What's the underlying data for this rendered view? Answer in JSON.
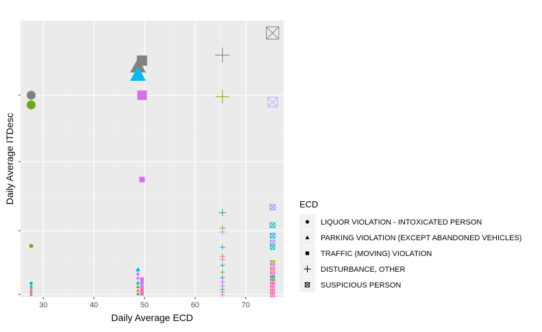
{
  "chart_data": {
    "type": "scatter",
    "title": "",
    "xlabel": "Daily Average ECD",
    "ylabel": "Daily Average ITDesc",
    "xlim": [
      25.5,
      77.5
    ],
    "ylim": [
      0,
      100
    ],
    "x_ticks": [
      30,
      40,
      50,
      60,
      70
    ],
    "y_ticks": [
      1,
      24,
      49,
      73
    ],
    "y_tick_labels_shown": false,
    "grid": true,
    "legend": {
      "title": "ECD",
      "position": "right",
      "entries": [
        {
          "label": "LIQUOR VIOLATION - INTOXICATED PERSON",
          "shape": "circle"
        },
        {
          "label": "PARKING VIOLATION (EXCEPT ABANDONED VEHICLES)",
          "shape": "triangle"
        },
        {
          "label": "TRAFFIC (MOVING) VIOLATION",
          "shape": "square"
        },
        {
          "label": "DISTURBANCE, OTHER",
          "shape": "plus"
        },
        {
          "label": "SUSPICIOUS PERSON",
          "shape": "boxx"
        }
      ]
    },
    "series": [
      {
        "shape": "circle",
        "x": 27.6,
        "points": [
          {
            "y": 73,
            "size": 6.5,
            "color": "#808080"
          },
          {
            "y": 69.5,
            "size": 6.5,
            "color": "#6aab10"
          },
          {
            "y": 18.5,
            "size": 3,
            "color": "#7cae00"
          },
          {
            "y": 5,
            "size": 2.2,
            "color": "#00bf7d"
          },
          {
            "y": 3.8,
            "size": 2,
            "color": "#00b0f6"
          },
          {
            "y": 2.8,
            "size": 2,
            "color": "#e76bf3"
          },
          {
            "y": 1.8,
            "size": 2,
            "color": "#a3a500"
          },
          {
            "y": 0.8,
            "size": 2,
            "color": "#ff62bc"
          }
        ]
      },
      {
        "shape": "triangle",
        "x": 48.7,
        "points": [
          {
            "y": 83.5,
            "size": 10,
            "color": "#808080"
          },
          {
            "y": 80.5,
            "size": 10,
            "color": "#00bcf0"
          },
          {
            "y": 10,
            "size": 3,
            "color": "#00b0f6"
          },
          {
            "y": 8.5,
            "size": 2.6,
            "color": "#9590ff"
          },
          {
            "y": 7,
            "size": 2.6,
            "color": "#e76bf3"
          },
          {
            "y": 5.2,
            "size": 2.6,
            "color": "#00bfc4"
          },
          {
            "y": 3.8,
            "size": 2.4,
            "color": "#7cae00"
          },
          {
            "y": 2.4,
            "size": 2.4,
            "color": "#f8766d"
          },
          {
            "y": 1.2,
            "size": 2.2,
            "color": "#00bf7d"
          }
        ]
      },
      {
        "shape": "square",
        "x": 49.5,
        "points": [
          {
            "y": 85.5,
            "size": 7.5,
            "color": "#808080"
          },
          {
            "y": 73,
            "size": 7,
            "color": "#d66ef0"
          },
          {
            "y": 42.5,
            "size": 4,
            "color": "#d66ef0"
          },
          {
            "y": 6.5,
            "size": 2.6,
            "color": "#e76bf3"
          },
          {
            "y": 5.2,
            "size": 2.6,
            "color": "#d66ef0"
          },
          {
            "y": 3.8,
            "size": 2.6,
            "color": "#c77cff"
          },
          {
            "y": 2.5,
            "size": 2.6,
            "color": "#ff62bc"
          },
          {
            "y": 1.2,
            "size": 2.6,
            "color": "#ff6c91"
          }
        ]
      },
      {
        "shape": "plus",
        "x": 65.4,
        "points": [
          {
            "y": 87.5,
            "size": 11,
            "color": "#808080"
          },
          {
            "y": 72.5,
            "size": 10,
            "color": "#7cae00"
          },
          {
            "y": 30.5,
            "size": 5,
            "color": "#00ba38"
          },
          {
            "y": 25,
            "size": 4.5,
            "color": "#a3a500"
          },
          {
            "y": 23.5,
            "size": 4.5,
            "color": "#c77cff"
          },
          {
            "y": 18,
            "size": 4,
            "color": "#00b0f6"
          },
          {
            "y": 14.8,
            "size": 4,
            "color": "#e7861b"
          },
          {
            "y": 13.6,
            "size": 4,
            "color": "#fd61d1"
          },
          {
            "y": 11.5,
            "size": 3.5,
            "color": "#00bf7d"
          },
          {
            "y": 9,
            "size": 3.5,
            "color": "#7cae00"
          },
          {
            "y": 7,
            "size": 3.5,
            "color": "#00a9ff"
          },
          {
            "y": 5.5,
            "size": 3.5,
            "color": "#ff62bc"
          },
          {
            "y": 4,
            "size": 3.5,
            "color": "#9590ff"
          },
          {
            "y": 2.8,
            "size": 3.5,
            "color": "#00bfc4"
          },
          {
            "y": 1.8,
            "size": 3.5,
            "color": "#f8766d"
          },
          {
            "y": 0.8,
            "size": 3.5,
            "color": "#e76bf3"
          }
        ]
      },
      {
        "shape": "boxx",
        "x": 75.3,
        "points": [
          {
            "y": 95.5,
            "size": 9,
            "color": "#808080"
          },
          {
            "y": 70.5,
            "size": 7,
            "color": "#c1a3ff"
          },
          {
            "y": 32.5,
            "size": 3.8,
            "color": "#a58aff"
          },
          {
            "y": 26,
            "size": 3.6,
            "color": "#00bfc4"
          },
          {
            "y": 22.2,
            "size": 3.4,
            "color": "#00b0f6"
          },
          {
            "y": 19.8,
            "size": 3.2,
            "color": "#9590ff"
          },
          {
            "y": 18,
            "size": 3.2,
            "color": "#00bfc4"
          },
          {
            "y": 12.5,
            "size": 3,
            "color": "#a3a500"
          },
          {
            "y": 11,
            "size": 3,
            "color": "#e76bf3"
          },
          {
            "y": 9.5,
            "size": 3,
            "color": "#f8766d"
          },
          {
            "y": 8,
            "size": 3,
            "color": "#ff62bc"
          },
          {
            "y": 6.8,
            "size": 3,
            "color": "#00bf7d"
          },
          {
            "y": 5.6,
            "size": 3,
            "color": "#ff6c91"
          },
          {
            "y": 4.4,
            "size": 3,
            "color": "#ff62bc"
          },
          {
            "y": 3.2,
            "size": 3,
            "color": "#e76bf3"
          },
          {
            "y": 2,
            "size": 3,
            "color": "#ff6c91"
          },
          {
            "y": 0.8,
            "size": 3,
            "color": "#ff62bc"
          }
        ]
      }
    ]
  }
}
